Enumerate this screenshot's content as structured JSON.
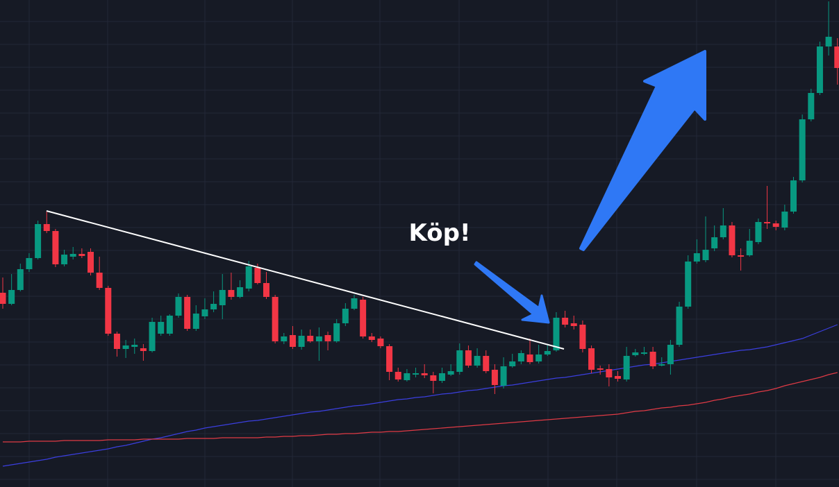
{
  "chart_data": {
    "type": "candlestick",
    "annotation": "Köp!",
    "ylim": [
      0,
      702
    ],
    "up_color": "#089981",
    "down_color": "#f23645",
    "open": [
      280,
      264,
      284,
      314,
      330,
      379,
      369,
      321,
      332,
      336,
      339,
      309,
      287,
      221,
      199,
      202,
      200,
      196,
      221,
      221,
      247,
      274,
      228,
      246,
      256,
      262,
      284,
      274,
      286,
      316,
      294,
      274,
      210,
      219,
      202,
      218,
      210,
      219,
      210,
      236,
      257,
      270,
      217,
      214,
      203,
      166,
      154,
      162,
      164,
      161,
      153,
      162,
      166,
      197,
      175,
      189,
      169,
      146,
      174,
      181,
      191,
      181,
      191,
      197,
      244,
      236,
      234,
      200,
      171,
      170,
      160,
      155,
      190,
      192,
      195,
      175,
      177,
      205,
      260,
      325,
      327,
      344,
      360,
      377,
      334,
      334,
      353,
      382,
      380,
      374,
      397,
      442,
      530,
      568,
      635,
      635
    ],
    "high": [
      302,
      307,
      322,
      337,
      384,
      397,
      372,
      342,
      346,
      344,
      344,
      332,
      290,
      224,
      212,
      214,
      206,
      244,
      247,
      249,
      279,
      277,
      262,
      272,
      282,
      307,
      309,
      298,
      326,
      322,
      310,
      277,
      222,
      232,
      227,
      227,
      230,
      224,
      242,
      265,
      277,
      274,
      222,
      217,
      206,
      172,
      170,
      172,
      177,
      166,
      172,
      177,
      207,
      204,
      200,
      197,
      177,
      187,
      192,
      197,
      214,
      205,
      205,
      252,
      254,
      247,
      240,
      204,
      175,
      177,
      167,
      202,
      199,
      202,
      202,
      187,
      212,
      267,
      334,
      357,
      390,
      377,
      402,
      382,
      344,
      372,
      387,
      434,
      384,
      407,
      447,
      537,
      574,
      642,
      700,
      647
    ],
    "low": [
      257,
      262,
      282,
      310,
      328,
      366,
      317,
      318,
      328,
      330,
      305,
      284,
      218,
      188,
      186,
      192,
      182,
      194,
      218,
      218,
      244,
      225,
      225,
      242,
      252,
      242,
      270,
      272,
      282,
      292,
      271,
      207,
      206,
      199,
      198,
      208,
      182,
      197,
      208,
      232,
      255,
      214,
      209,
      200,
      154,
      152,
      152,
      158,
      157,
      135,
      150,
      160,
      162,
      172,
      172,
      164,
      134,
      142,
      172,
      177,
      177,
      178,
      189,
      195,
      230,
      227,
      194,
      164,
      162,
      145,
      152,
      152,
      188,
      190,
      170,
      174,
      162,
      202,
      257,
      322,
      324,
      340,
      357,
      331,
      312,
      332,
      350,
      372,
      370,
      370,
      394,
      439,
      527,
      565,
      622,
      580
    ],
    "close": [
      264,
      284,
      314,
      330,
      379,
      369,
      321,
      335,
      336,
      333,
      309,
      287,
      221,
      199,
      204,
      205,
      196,
      238,
      238,
      247,
      274,
      228,
      250,
      256,
      264,
      284,
      274,
      288,
      318,
      294,
      274,
      210,
      217,
      202,
      218,
      210,
      217,
      210,
      236,
      257,
      272,
      217,
      212,
      203,
      166,
      155,
      164,
      164,
      161,
      153,
      164,
      167,
      197,
      175,
      189,
      167,
      147,
      174,
      181,
      193,
      180,
      191,
      196,
      244,
      234,
      232,
      199,
      169,
      169,
      158,
      156,
      189,
      194,
      194,
      174,
      177,
      205,
      260,
      325,
      337,
      342,
      360,
      377,
      334,
      332,
      355,
      382,
      380,
      375,
      397,
      442,
      530,
      568,
      635,
      649,
      604
    ],
    "moving_averages": [
      {
        "color": "#3b3fe0",
        "values": [
          30,
          32,
          34,
          36,
          38,
          40,
          43,
          45,
          47,
          49,
          51,
          53,
          55,
          58,
          60,
          63,
          66,
          69,
          71,
          74,
          77,
          80,
          82,
          85,
          87,
          89,
          91,
          93,
          95,
          96,
          98,
          100,
          102,
          104,
          106,
          108,
          109,
          111,
          113,
          115,
          117,
          118,
          120,
          122,
          124,
          126,
          127,
          129,
          130,
          132,
          134,
          135,
          137,
          139,
          140,
          142,
          144,
          146,
          147,
          149,
          151,
          153,
          155,
          157,
          158,
          160,
          162,
          164,
          166,
          168,
          170,
          172,
          174,
          176,
          177,
          179,
          181,
          183,
          185,
          187,
          189,
          191,
          193,
          195,
          197,
          198,
          200,
          202,
          205,
          208,
          211,
          214,
          219,
          224,
          229,
          234
        ]
      },
      {
        "color": "#e03a45",
        "values": [
          65,
          65,
          65,
          66,
          66,
          66,
          66,
          67,
          67,
          67,
          67,
          67,
          68,
          68,
          68,
          68,
          69,
          69,
          69,
          69,
          69,
          70,
          70,
          70,
          70,
          71,
          71,
          71,
          71,
          71,
          72,
          72,
          73,
          73,
          74,
          74,
          75,
          76,
          76,
          77,
          77,
          78,
          79,
          79,
          80,
          80,
          81,
          82,
          83,
          84,
          85,
          86,
          87,
          88,
          89,
          90,
          91,
          92,
          93,
          94,
          95,
          96,
          97,
          98,
          99,
          100,
          101,
          102,
          103,
          104,
          105,
          107,
          109,
          110,
          112,
          114,
          115,
          117,
          118,
          120,
          122,
          125,
          127,
          130,
          132,
          134,
          137,
          139,
          142,
          146,
          149,
          152,
          155,
          158,
          162,
          165
        ]
      }
    ]
  }
}
